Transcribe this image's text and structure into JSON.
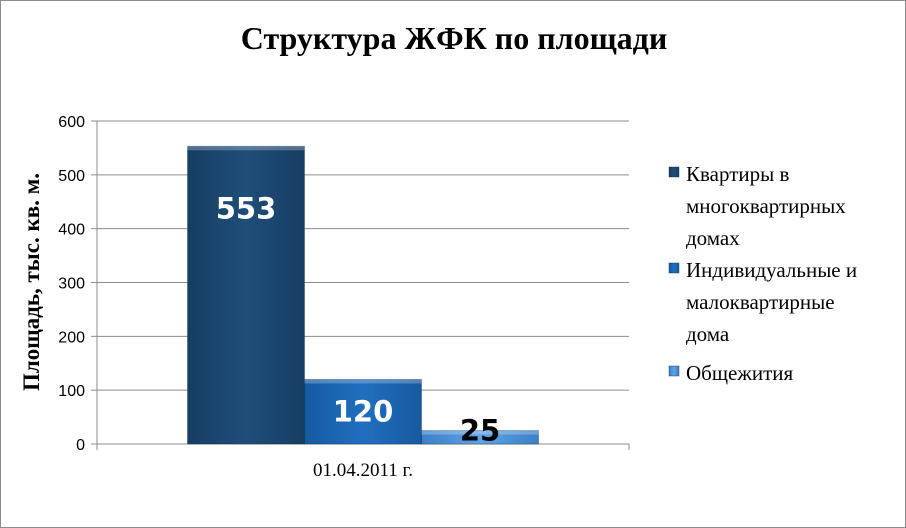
{
  "chart_data": {
    "type": "bar",
    "title": "Структура ЖФК по площади",
    "xlabel": "",
    "ylabel": "Площадь, тыс. кв. м.",
    "categories": [
      "01.04.2011 г."
    ],
    "ylim": [
      0,
      600
    ],
    "yticks": [
      "0",
      "100",
      "200",
      "300",
      "400",
      "500",
      "600"
    ],
    "grid": true,
    "legend_position": "right",
    "series": [
      {
        "name": "Квартиры в многоквартирных домах",
        "legend_lines": [
          "Квартиры в",
          "многоквартирных",
          "домах"
        ],
        "values": [
          553
        ],
        "label": "553",
        "color": "#1f4e79",
        "label_color": "#ffffff"
      },
      {
        "name": "Индивидуальные и малоквартирные дома",
        "legend_lines": [
          "Индивидуальные и",
          "малоквартирные",
          "дома"
        ],
        "values": [
          120
        ],
        "label": "120",
        "color": "#1f6fbf",
        "label_color": "#ffffff"
      },
      {
        "name": "Общежития",
        "legend_lines": [
          "Общежития"
        ],
        "values": [
          25
        ],
        "label": "25",
        "color": "#4d94db",
        "label_color": "#000000"
      }
    ]
  }
}
